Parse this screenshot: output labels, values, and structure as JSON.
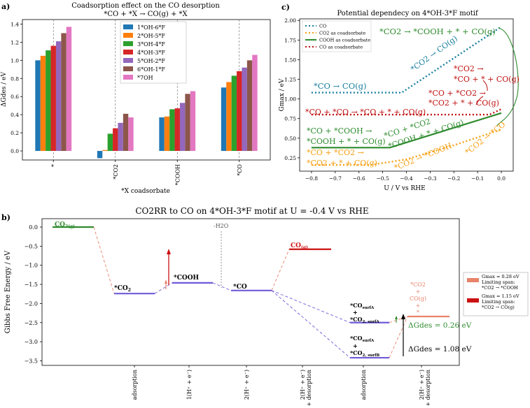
{
  "colors": {
    "s1": "#1f77b4",
    "s2": "#ff7f0e",
    "s3": "#2ca02c",
    "s4": "#d62728",
    "s5": "#9467bd",
    "s6": "#8c564b",
    "s7": "#e377c2",
    "teal": "#1a7fa0",
    "orange": "#f5a012",
    "green": "#2e8b2e",
    "red": "#c01010",
    "purple": "#6f5bd8",
    "salmon": "#e8826a",
    "darkred": "#cc1111"
  },
  "chart_data": [
    {
      "id": "a",
      "type": "bar",
      "panel_label": "a)",
      "title": "Coadsorption effect on the CO desorption",
      "subtitle": "*CO + *X → CO(g) + *X",
      "xlabel": "*X coadsorbate",
      "ylabel": "ΔGdes / eV",
      "ylim": [
        -0.1,
        1.45
      ],
      "yticks": [
        0.0,
        0.2,
        0.4,
        0.6,
        0.8,
        1.0,
        1.2,
        1.4
      ],
      "ytick_labels": [
        "0.0",
        "0.2",
        "0.4",
        "0.6",
        "0.8",
        "1.0",
        "1.2",
        "1.4"
      ],
      "categories": [
        "*",
        "*CO2",
        "*COOH",
        "*CO"
      ],
      "series": [
        {
          "name": "1*OH-6*F",
          "values": [
            1.0,
            -0.08,
            0.37,
            0.7
          ]
        },
        {
          "name": "2*OH-5*F",
          "values": [
            1.05,
            0.01,
            0.38,
            0.76
          ]
        },
        {
          "name": "3*OH-4*F",
          "values": [
            1.11,
            0.19,
            0.46,
            0.83
          ]
        },
        {
          "name": "4*OH-3*F",
          "values": [
            1.16,
            0.25,
            0.47,
            0.88
          ]
        },
        {
          "name": "5*OH-2*F",
          "values": [
            1.21,
            0.31,
            0.53,
            0.92
          ]
        },
        {
          "name": "6*OH-1*F",
          "values": [
            1.3,
            0.41,
            0.63,
            1.0
          ]
        },
        {
          "name": "*7OH",
          "values": [
            1.37,
            0.37,
            0.66,
            1.06
          ]
        }
      ]
    },
    {
      "id": "c",
      "type": "line",
      "panel_label": "c)",
      "title": "Potential dependecy on 4*OH-3*F motif",
      "xlabel": "U / V vs RHE",
      "ylabel": "Gmax / eV",
      "xlim": [
        -0.85,
        0.05
      ],
      "ylim": [
        0.08,
        2.02
      ],
      "xticks": [
        -0.8,
        -0.7,
        -0.6,
        -0.5,
        -0.4,
        -0.3,
        -0.2,
        -0.1,
        0.0
      ],
      "xtick_labels": [
        "−0.8",
        "−0.7",
        "−0.6",
        "−0.5",
        "−0.4",
        "−0.3",
        "−0.2",
        "−0.1",
        "0.0"
      ],
      "yticks": [
        0.25,
        0.5,
        0.75,
        1.0,
        1.25,
        1.5,
        1.75,
        2.0
      ],
      "ytick_labels": [
        "0.25",
        "0.50",
        "0.75",
        "1.00",
        "1.25",
        "1.50",
        "1.75",
        "2.00"
      ],
      "legend": [
        "CO",
        "CO2 as coadsorbate",
        "COOH as coadsorbate",
        "CO as coadsorbate"
      ],
      "series": [
        {
          "name": "CO",
          "x": [
            -0.8,
            -0.42,
            0.0
          ],
          "y": [
            1.08,
            1.08,
            1.92
          ]
        },
        {
          "name": "CO2 as coadsorbate",
          "x": [
            -0.8,
            -0.55,
            -0.4,
            -0.2,
            0.0
          ],
          "y": [
            0.16,
            0.16,
            0.23,
            0.41,
            0.61
          ]
        },
        {
          "name": "COOH as coadsorbate",
          "x": [
            -0.8,
            -0.47,
            0.0
          ],
          "y": [
            0.38,
            0.38,
            0.82
          ]
        },
        {
          "name": "CO as coadsorbate",
          "x": [
            -0.8,
            -0.05,
            0.0
          ],
          "y": [
            0.8,
            0.8,
            0.87
          ]
        }
      ],
      "annotations": {
        "teal1": "*CO → CO(g)",
        "teal2": "*CO2 → CO(g)",
        "green1": "*CO2 → *COOH + * + CO(g)",
        "green2a": "*CO + *COOH →",
        "green2b": "*COOH + * + CO(g)",
        "green3a": "*CO + *CO2",
        "green3b": "*COOH + * + CO(g)",
        "red1": "*CO + *CO → *CO + * + CO(g)",
        "red2a": "*CO2 →",
        "red2b": "*CO + * + CO(g)",
        "red3a": "*CO + *CO2 →",
        "red3b": "*CO2 + * + CO(g)",
        "orange1a": "*CO + *CO2 →",
        "orange1b": "*CO2 + * + CO(g)",
        "orange2": "*CO2 → *COOH",
        "orange3": "*CO2 → *CO"
      }
    },
    {
      "id": "b",
      "type": "line",
      "panel_label": "b)",
      "title": "CO2RR to CO on 4*OH-3*F motif at U = -0.4 V vs RHE",
      "ylabel": "Gibbs Free Energy / eV",
      "ylim": [
        -3.62,
        0.22
      ],
      "yticks": [
        0.0,
        -0.5,
        -1.0,
        -1.5,
        -2.0,
        -2.5,
        -3.0,
        -3.5
      ],
      "ytick_labels": [
        "0.0",
        "−0.5",
        "−1.0",
        "−1.5",
        "−2.0",
        "−2.5",
        "−3.0",
        "−3.5"
      ],
      "step_labels": [
        "adsorption",
        "1(H⁺ + e⁻)",
        "2(H⁺ + e⁻)",
        "2(H⁺ + e⁻) + desorption",
        "adsorption",
        "2(H⁺ + e⁻) + desorption"
      ],
      "levels": [
        {
          "name": "CO2(g)",
          "value": 0.0
        },
        {
          "name": "*CO2",
          "value": -1.74
        },
        {
          "name": "*COOH",
          "value": -1.46
        },
        {
          "name": "*CO",
          "value": -1.66
        },
        {
          "name": "CO(g)",
          "value": -0.58
        },
        {
          "name": "*CO_surfA + *CO2_surfA",
          "value": -2.5
        },
        {
          "name": "*CO_surfA + *CO2_surfB",
          "value": -3.42
        },
        {
          "name": "*CO2 + CO(g)",
          "value": -2.34
        }
      ],
      "annotations": {
        "h2o": "-H2O",
        "dgdes1": "ΔGdes = 0.26 eV",
        "dgdes2": "ΔGdes = 1.08 eV",
        "pink_stack": [
          "*CO2",
          "+",
          "CO(g)",
          "+",
          "*"
        ]
      },
      "side_legend": [
        {
          "gmax": "Gmax = 0.28 eV",
          "line1": "Limiting span:",
          "line2": "*CO2 → *COOH"
        },
        {
          "gmax": "Gmax = 1.15 eV",
          "line1": "Limiting span:",
          "line2": "*CO2 → CO(g)"
        }
      ]
    }
  ]
}
